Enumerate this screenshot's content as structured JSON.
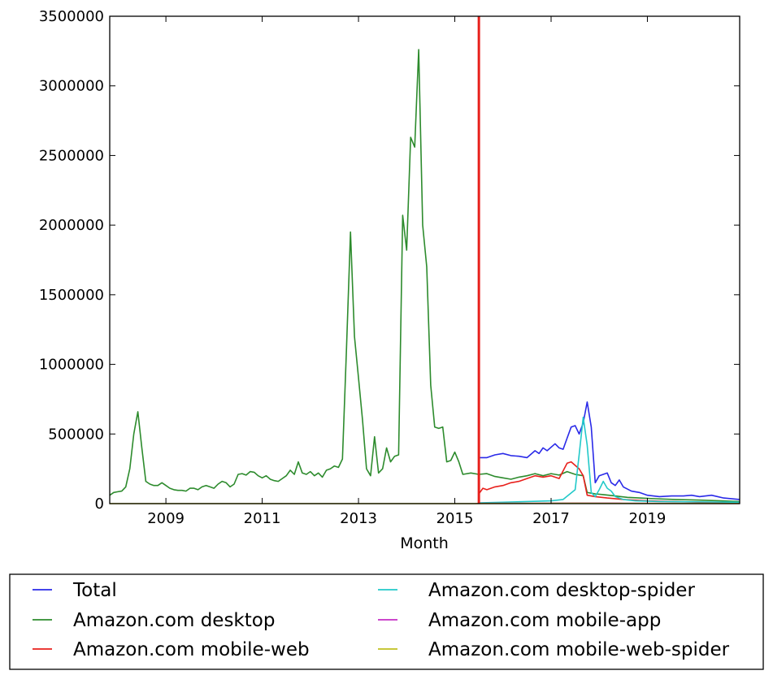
{
  "chart_data": {
    "type": "line",
    "title": "",
    "xlabel": "Month",
    "ylabel": "",
    "xlim": [
      "2007-11",
      "2020-12"
    ],
    "ylim": [
      0,
      3500000
    ],
    "xticks": [
      "2009",
      "2011",
      "2013",
      "2015",
      "2017",
      "2019"
    ],
    "yticks": [
      "0",
      "500000",
      "1000000",
      "1500000",
      "2000000",
      "2500000",
      "3000000",
      "3500000"
    ],
    "grid": false,
    "legend_position": "below",
    "vertical_marker": {
      "x": "2015-07",
      "color": "#e8201c"
    },
    "series": [
      {
        "name": "Total",
        "color": "#2a2ae8",
        "points": [
          [
            "2015-07",
            330000
          ],
          [
            "2015-09",
            330000
          ],
          [
            "2015-11",
            350000
          ],
          [
            "2016-01",
            360000
          ],
          [
            "2016-03",
            345000
          ],
          [
            "2016-05",
            340000
          ],
          [
            "2016-07",
            330000
          ],
          [
            "2016-09",
            380000
          ],
          [
            "2016-10",
            360000
          ],
          [
            "2016-11",
            400000
          ],
          [
            "2016-12",
            380000
          ],
          [
            "2017-02",
            430000
          ],
          [
            "2017-03",
            400000
          ],
          [
            "2017-04",
            390000
          ],
          [
            "2017-05",
            470000
          ],
          [
            "2017-06",
            550000
          ],
          [
            "2017-07",
            560000
          ],
          [
            "2017-08",
            500000
          ],
          [
            "2017-09",
            580000
          ],
          [
            "2017-10",
            730000
          ],
          [
            "2017-11",
            550000
          ],
          [
            "2017-12",
            150000
          ],
          [
            "2018-01",
            200000
          ],
          [
            "2018-03",
            220000
          ],
          [
            "2018-04",
            150000
          ],
          [
            "2018-05",
            130000
          ],
          [
            "2018-06",
            170000
          ],
          [
            "2018-07",
            120000
          ],
          [
            "2018-09",
            90000
          ],
          [
            "2018-11",
            80000
          ],
          [
            "2019-01",
            60000
          ],
          [
            "2019-04",
            50000
          ],
          [
            "2019-07",
            55000
          ],
          [
            "2019-10",
            55000
          ],
          [
            "2019-12",
            60000
          ],
          [
            "2020-02",
            50000
          ],
          [
            "2020-05",
            60000
          ],
          [
            "2020-08",
            40000
          ],
          [
            "2020-12",
            30000
          ]
        ]
      },
      {
        "name": "Amazon.com desktop",
        "color": "#2d8b2d",
        "points": [
          [
            "2007-11",
            60000
          ],
          [
            "2007-12",
            80000
          ],
          [
            "2008-01",
            85000
          ],
          [
            "2008-02",
            90000
          ],
          [
            "2008-03",
            120000
          ],
          [
            "2008-04",
            250000
          ],
          [
            "2008-05",
            500000
          ],
          [
            "2008-06",
            660000
          ],
          [
            "2008-07",
            400000
          ],
          [
            "2008-08",
            160000
          ],
          [
            "2008-09",
            140000
          ],
          [
            "2008-10",
            130000
          ],
          [
            "2008-11",
            130000
          ],
          [
            "2008-12",
            150000
          ],
          [
            "2009-01",
            130000
          ],
          [
            "2009-02",
            110000
          ],
          [
            "2009-03",
            100000
          ],
          [
            "2009-04",
            95000
          ],
          [
            "2009-05",
            95000
          ],
          [
            "2009-06",
            90000
          ],
          [
            "2009-07",
            110000
          ],
          [
            "2009-08",
            110000
          ],
          [
            "2009-09",
            100000
          ],
          [
            "2009-10",
            120000
          ],
          [
            "2009-11",
            130000
          ],
          [
            "2009-12",
            120000
          ],
          [
            "2010-01",
            110000
          ],
          [
            "2010-02",
            140000
          ],
          [
            "2010-03",
            160000
          ],
          [
            "2010-04",
            150000
          ],
          [
            "2010-05",
            120000
          ],
          [
            "2010-06",
            140000
          ],
          [
            "2010-07",
            210000
          ],
          [
            "2010-08",
            215000
          ],
          [
            "2010-09",
            205000
          ],
          [
            "2010-10",
            230000
          ],
          [
            "2010-11",
            225000
          ],
          [
            "2010-12",
            200000
          ],
          [
            "2011-01",
            185000
          ],
          [
            "2011-02",
            200000
          ],
          [
            "2011-03",
            175000
          ],
          [
            "2011-04",
            165000
          ],
          [
            "2011-05",
            160000
          ],
          [
            "2011-06",
            180000
          ],
          [
            "2011-07",
            200000
          ],
          [
            "2011-08",
            240000
          ],
          [
            "2011-09",
            210000
          ],
          [
            "2011-10",
            300000
          ],
          [
            "2011-11",
            220000
          ],
          [
            "2011-12",
            210000
          ],
          [
            "2012-01",
            230000
          ],
          [
            "2012-02",
            200000
          ],
          [
            "2012-03",
            220000
          ],
          [
            "2012-04",
            190000
          ],
          [
            "2012-05",
            240000
          ],
          [
            "2012-06",
            250000
          ],
          [
            "2012-07",
            270000
          ],
          [
            "2012-08",
            260000
          ],
          [
            "2012-09",
            320000
          ],
          [
            "2012-10",
            1100000
          ],
          [
            "2012-11",
            1950000
          ],
          [
            "2012-12",
            1200000
          ],
          [
            "2013-01",
            900000
          ],
          [
            "2013-02",
            600000
          ],
          [
            "2013-03",
            250000
          ],
          [
            "2013-04",
            200000
          ],
          [
            "2013-05",
            480000
          ],
          [
            "2013-06",
            220000
          ],
          [
            "2013-07",
            250000
          ],
          [
            "2013-08",
            400000
          ],
          [
            "2013-09",
            300000
          ],
          [
            "2013-10",
            340000
          ],
          [
            "2013-11",
            350000
          ],
          [
            "2013-12",
            2070000
          ],
          [
            "2014-01",
            1820000
          ],
          [
            "2014-02",
            2630000
          ],
          [
            "2014-03",
            2560000
          ],
          [
            "2014-04",
            3260000
          ],
          [
            "2014-05",
            2000000
          ],
          [
            "2014-06",
            1700000
          ],
          [
            "2014-07",
            850000
          ],
          [
            "2014-08",
            550000
          ],
          [
            "2014-09",
            540000
          ],
          [
            "2014-10",
            550000
          ],
          [
            "2014-11",
            300000
          ],
          [
            "2014-12",
            310000
          ],
          [
            "2015-01",
            370000
          ],
          [
            "2015-02",
            300000
          ],
          [
            "2015-03",
            210000
          ],
          [
            "2015-05",
            220000
          ],
          [
            "2015-07",
            210000
          ],
          [
            "2015-09",
            215000
          ],
          [
            "2015-11",
            195000
          ],
          [
            "2016-01",
            185000
          ],
          [
            "2016-03",
            175000
          ],
          [
            "2016-05",
            190000
          ],
          [
            "2016-07",
            200000
          ],
          [
            "2016-09",
            215000
          ],
          [
            "2016-11",
            200000
          ],
          [
            "2017-01",
            215000
          ],
          [
            "2017-03",
            205000
          ],
          [
            "2017-05",
            230000
          ],
          [
            "2017-07",
            210000
          ],
          [
            "2017-09",
            200000
          ],
          [
            "2017-10",
            80000
          ],
          [
            "2017-12",
            70000
          ],
          [
            "2018-02",
            65000
          ],
          [
            "2018-05",
            55000
          ],
          [
            "2018-08",
            45000
          ],
          [
            "2018-11",
            40000
          ],
          [
            "2019-03",
            35000
          ],
          [
            "2019-08",
            30000
          ],
          [
            "2020-02",
            25000
          ],
          [
            "2020-12",
            15000
          ]
        ]
      },
      {
        "name": "Amazon.com mobile-web",
        "color": "#e8201c",
        "points": [
          [
            "2015-07",
            70000
          ],
          [
            "2015-08",
            110000
          ],
          [
            "2015-09",
            100000
          ],
          [
            "2015-11",
            120000
          ],
          [
            "2016-01",
            130000
          ],
          [
            "2016-03",
            150000
          ],
          [
            "2016-05",
            160000
          ],
          [
            "2016-07",
            180000
          ],
          [
            "2016-09",
            200000
          ],
          [
            "2016-11",
            190000
          ],
          [
            "2017-01",
            200000
          ],
          [
            "2017-03",
            180000
          ],
          [
            "2017-05",
            290000
          ],
          [
            "2017-06",
            300000
          ],
          [
            "2017-08",
            250000
          ],
          [
            "2017-09",
            200000
          ],
          [
            "2017-10",
            60000
          ],
          [
            "2017-12",
            50000
          ],
          [
            "2018-03",
            40000
          ],
          [
            "2018-07",
            30000
          ],
          [
            "2019-01",
            20000
          ],
          [
            "2019-07",
            15000
          ],
          [
            "2020-03",
            10000
          ],
          [
            "2020-12",
            5000
          ]
        ]
      },
      {
        "name": "Amazon.com desktop-spider",
        "color": "#22c9c9",
        "points": [
          [
            "2015-07",
            5000
          ],
          [
            "2016-01",
            10000
          ],
          [
            "2016-07",
            15000
          ],
          [
            "2017-01",
            20000
          ],
          [
            "2017-04",
            30000
          ],
          [
            "2017-07",
            100000
          ],
          [
            "2017-08",
            350000
          ],
          [
            "2017-09",
            620000
          ],
          [
            "2017-10",
            420000
          ],
          [
            "2017-11",
            80000
          ],
          [
            "2017-12",
            50000
          ],
          [
            "2018-01",
            100000
          ],
          [
            "2018-02",
            160000
          ],
          [
            "2018-03",
            110000
          ],
          [
            "2018-04",
            90000
          ],
          [
            "2018-05",
            50000
          ],
          [
            "2018-07",
            30000
          ],
          [
            "2018-10",
            20000
          ],
          [
            "2019-04",
            15000
          ],
          [
            "2020-12",
            10000
          ]
        ]
      },
      {
        "name": "Amazon.com mobile-app",
        "color": "#c42ec4",
        "points": [
          [
            "2015-07",
            2000
          ],
          [
            "2016-07",
            3000
          ],
          [
            "2017-07",
            4000
          ],
          [
            "2018-07",
            3000
          ],
          [
            "2019-07",
            2000
          ],
          [
            "2020-12",
            1000
          ]
        ]
      },
      {
        "name": "Amazon.com mobile-web-spider",
        "color": "#bfbf1f",
        "points": [
          [
            "2007-11",
            0
          ],
          [
            "2015-06",
            0
          ],
          [
            "2015-07",
            1000
          ],
          [
            "2016-07",
            2000
          ],
          [
            "2017-07",
            3000
          ],
          [
            "2018-07",
            2000
          ],
          [
            "2020-12",
            1000
          ]
        ]
      }
    ]
  }
}
